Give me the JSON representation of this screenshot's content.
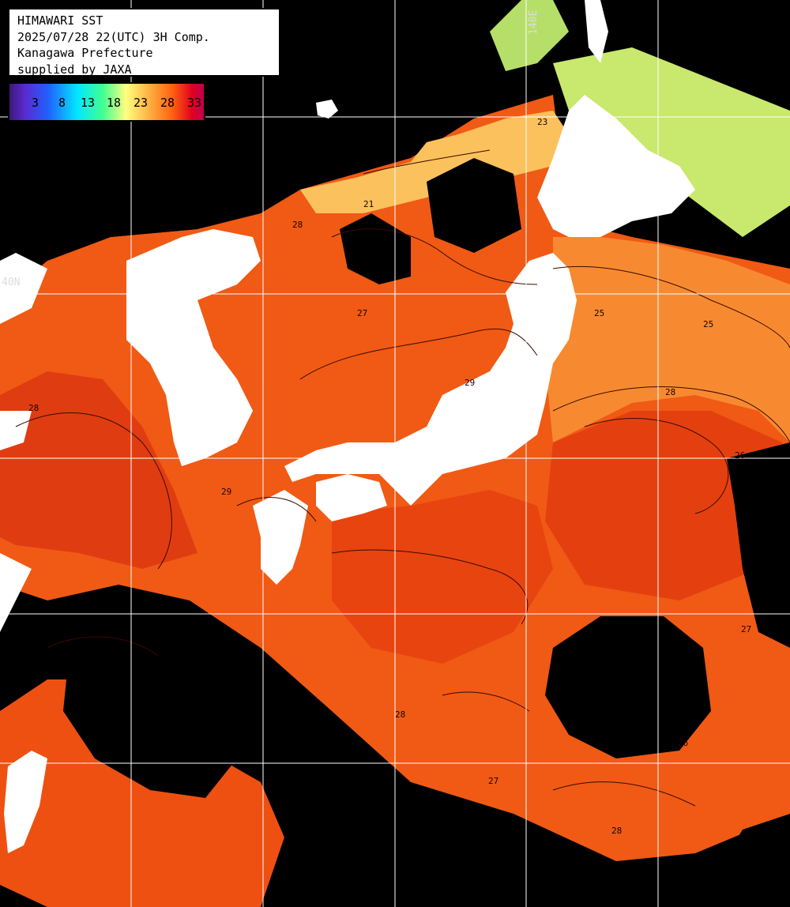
{
  "header": {
    "line1": "HIMAWARI SST",
    "line2": "2025/07/28 22(UTC) 3H Comp.",
    "line3": "Kanagawa Prefecture",
    "line4": "supplied by JAXA"
  },
  "scale": {
    "ticks": [
      "3",
      "8",
      "13",
      "18",
      "23",
      "28",
      "33"
    ]
  },
  "grid_labels": {
    "lat": "40N",
    "lon": "140E"
  },
  "contour_labels": [
    "21",
    "23",
    "25",
    "25",
    "27",
    "27",
    "28",
    "28",
    "28",
    "28",
    "29",
    "29",
    "26",
    "26",
    "27",
    "28"
  ],
  "colors": {
    "warm_ocean": "#f05010",
    "hot_ocean": "#e63a10",
    "mild_ocean": "#f7852e",
    "cool_ocean": "#fbc560",
    "green_coast": "#b8e06a",
    "land": "#ffffff",
    "cloud": "#000000",
    "grid": "#ffffff"
  }
}
